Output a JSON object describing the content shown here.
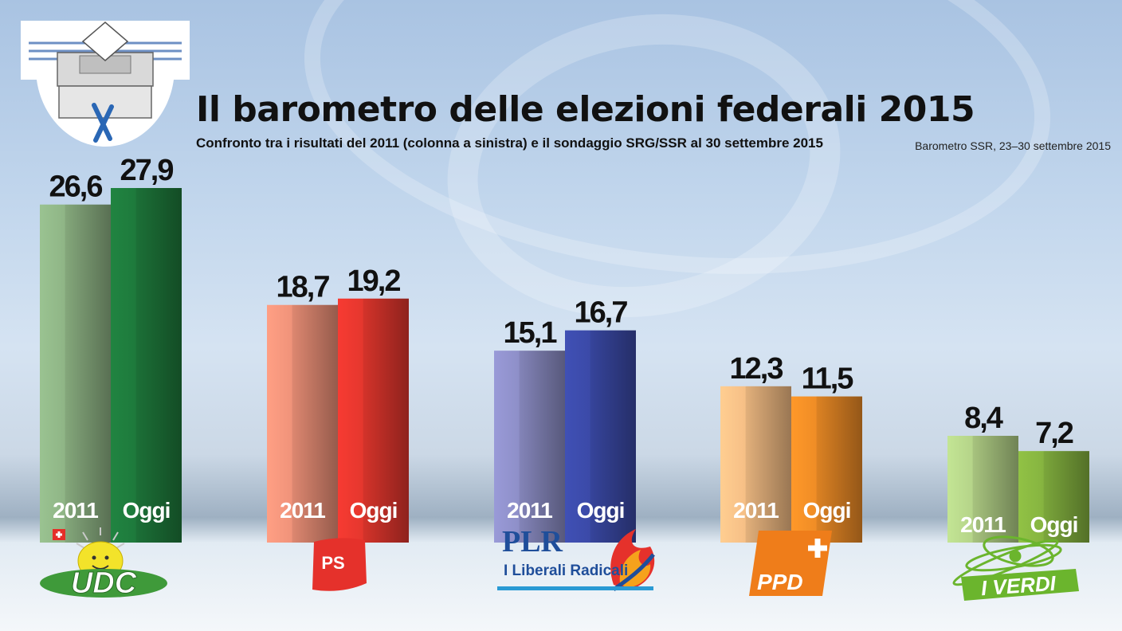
{
  "header": {
    "title": "Il barometro delle elezioni federali 2015",
    "subtitle": "Confronto tra i risultati del 2011 (colonna a sinistra) e il sondaggio SRG/SSR al 30 settembre 2015",
    "source": "Barometro SSR, 23–30 settembre 2015"
  },
  "chart_data": {
    "type": "bar",
    "title": "Il barometro delle elezioni federali 2015",
    "subtitle": "Confronto tra i risultati del 2011 (colonna a sinistra) e il sondaggio SRG/SSR al 30 settembre 2015",
    "categories": [
      "UDC",
      "PS",
      "PLR",
      "PPD",
      "I VERDI"
    ],
    "series": [
      {
        "name": "2011",
        "values": [
          26.6,
          18.7,
          15.1,
          12.3,
          8.4
        ]
      },
      {
        "name": "Oggi",
        "values": [
          27.9,
          19.2,
          16.7,
          11.5,
          7.2
        ]
      }
    ],
    "value_labels": {
      "2011": [
        "26,6",
        "18,7",
        "15,1",
        "12,3",
        "8,4"
      ],
      "Oggi": [
        "27,9",
        "19,2",
        "16,7",
        "11,5",
        "7,2"
      ]
    },
    "bar_labels": [
      "2011",
      "Oggi"
    ],
    "ylim": [
      0,
      30
    ],
    "grid": false,
    "colors": {
      "UDC": {
        "2011": "#8fb586",
        "Oggi": "#1e7a3c"
      },
      "PS": {
        "2011": "#f0937a",
        "Oggi": "#e5372e"
      },
      "PLR": {
        "2011": "#8e8fc8",
        "Oggi": "#3b4aa8"
      },
      "PPD": {
        "2011": "#f6bf86",
        "Oggi": "#ef8d26"
      },
      "I VERDI": {
        "2011": "#b5d489",
        "Oggi": "#86b440"
      }
    }
  },
  "logos": {
    "udc": {
      "text": "UDC",
      "color": "#3f9a3a",
      "icon": "sun-icon"
    },
    "ps": {
      "text": "PS",
      "color": "#e5312b"
    },
    "plr": {
      "text": "PLR",
      "subtext": "I Liberali Radicali",
      "color": "#1f4e9a",
      "icon": "flame-icon"
    },
    "ppd": {
      "text": "PPD",
      "color": "#ef7d1a",
      "icon": "cross-icon"
    },
    "verdi": {
      "text": "I VERDI",
      "color": "#6bb52d",
      "icon": "sunflower-icon"
    }
  },
  "ballot_icon": "ballot-box-icon"
}
